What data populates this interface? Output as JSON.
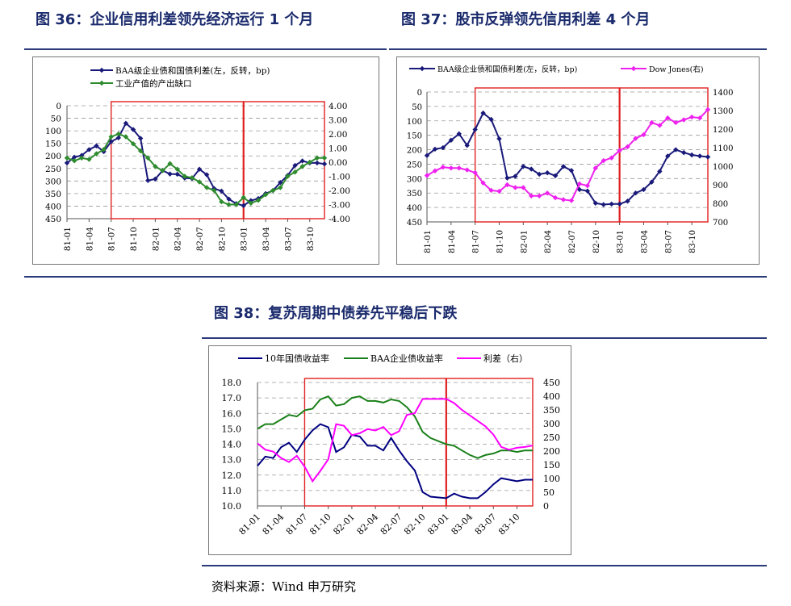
{
  "figure36": {
    "title": "图 36：企业信用利差领先经济运行 1 个月",
    "chart_data": {
      "type": "line",
      "categories": [
        "81-01",
        "81-02",
        "81-03",
        "81-04",
        "81-05",
        "81-06",
        "81-07",
        "81-08",
        "81-09",
        "81-10",
        "81-11",
        "81-12",
        "82-01",
        "82-02",
        "82-03",
        "82-04",
        "82-05",
        "82-06",
        "82-07",
        "82-08",
        "82-09",
        "82-10",
        "82-11",
        "82-12",
        "83-01",
        "83-02",
        "83-03",
        "83-04",
        "83-05",
        "83-06",
        "83-07",
        "83-08",
        "83-09",
        "83-10",
        "83-11",
        "83-12"
      ],
      "tick_labels": [
        "81-01",
        "81-04",
        "81-07",
        "81-10",
        "82-01",
        "82-04",
        "82-07",
        "82-10",
        "83-01",
        "83-04",
        "83-07",
        "83-10"
      ],
      "left_ticks": [
        "0",
        "50",
        "100",
        "150",
        "200",
        "250",
        "300",
        "350",
        "400",
        "450"
      ],
      "right_ticks": [
        "4.00",
        "3.00",
        "2.00",
        "1.00",
        "0.00",
        "-1.00",
        "-2.00",
        "-3.00",
        "-4.00"
      ],
      "left_range": [
        0,
        450
      ],
      "left_reversed": true,
      "right_range": [
        -4,
        4
      ],
      "highlight_ranges": [
        [
          "81-07",
          "83-01"
        ],
        [
          "83-01",
          "83-12"
        ]
      ],
      "series": [
        {
          "name": "BAA级企业债和国债利差(左，反转，bp)",
          "axis": "left",
          "color": "#1a1a7a",
          "values": [
            228,
            205,
            198,
            175,
            160,
            183,
            143,
            128,
            70,
            95,
            130,
            298,
            292,
            258,
            272,
            273,
            288,
            290,
            253,
            275,
            330,
            340,
            372,
            390,
            398,
            378,
            370,
            350,
            338,
            306,
            278,
            238,
            220,
            228,
            228,
            232
          ]
        },
        {
          "name": "工业产值的产出缺口",
          "axis": "right",
          "color": "#2e8b2e",
          "values": [
            0.3,
            0.1,
            0.3,
            0.2,
            0.6,
            0.9,
            1.8,
            2.0,
            1.8,
            1.3,
            0.8,
            0.3,
            -0.3,
            -0.6,
            -0.1,
            -0.5,
            -1.0,
            -1.1,
            -1.4,
            -1.8,
            -2.0,
            -2.8,
            -3.0,
            -3.0,
            -2.5,
            -2.9,
            -2.7,
            -2.3,
            -2.0,
            -1.8,
            -1.0,
            -0.7,
            -0.3,
            0.0,
            0.3,
            0.3
          ]
        }
      ]
    }
  },
  "figure37": {
    "title": "图 37：股市反弹领先信用利差 4 个月",
    "chart_data": {
      "type": "line",
      "categories": [
        "81-01",
        "81-02",
        "81-03",
        "81-04",
        "81-05",
        "81-06",
        "81-07",
        "81-08",
        "81-09",
        "81-10",
        "81-11",
        "81-12",
        "82-01",
        "82-02",
        "82-03",
        "82-04",
        "82-05",
        "82-06",
        "82-07",
        "82-08",
        "82-09",
        "82-10",
        "82-11",
        "82-12",
        "83-01",
        "83-02",
        "83-03",
        "83-04",
        "83-05",
        "83-06",
        "83-07",
        "83-08",
        "83-09",
        "83-10",
        "83-11",
        "83-12"
      ],
      "tick_labels": [
        "81-01",
        "81-04",
        "81-07",
        "81-10",
        "82-01",
        "82-04",
        "82-07",
        "82-10",
        "83-01",
        "83-04",
        "83-07",
        "83-10"
      ],
      "left_ticks": [
        "0",
        "50",
        "100",
        "150",
        "200",
        "250",
        "300",
        "350",
        "400",
        "450"
      ],
      "right_ticks": [
        "1400",
        "1300",
        "1200",
        "1100",
        "1000",
        "900",
        "800",
        "700"
      ],
      "left_range": [
        0,
        450
      ],
      "left_reversed": true,
      "right_range": [
        700,
        1400
      ],
      "highlight_ranges": [
        [
          "81-07",
          "83-01"
        ],
        [
          "83-01",
          "83-12"
        ]
      ],
      "series": [
        {
          "name": "BAA级企业债和国债利差(左，反转，bp)",
          "axis": "left",
          "color": "#1a1a7a",
          "values": [
            220,
            198,
            193,
            167,
            145,
            185,
            130,
            73,
            95,
            162,
            298,
            292,
            258,
            267,
            285,
            280,
            290,
            258,
            272,
            338,
            343,
            385,
            390,
            388,
            388,
            378,
            350,
            338,
            312,
            275,
            222,
            200,
            210,
            218,
            222,
            225
          ]
        },
        {
          "name": "Dow Jones(右)",
          "axis": "right",
          "color": "#ee22ee",
          "values": [
            950,
            975,
            995,
            990,
            990,
            980,
            965,
            910,
            870,
            865,
            900,
            885,
            885,
            840,
            840,
            855,
            830,
            820,
            815,
            905,
            895,
            990,
            1030,
            1045,
            1085,
            1105,
            1150,
            1170,
            1235,
            1220,
            1260,
            1235,
            1250,
            1265,
            1260,
            1305
          ]
        }
      ]
    }
  },
  "figure38": {
    "title": "图 38：复苏周期中债券先平稳后下跌",
    "chart_data": {
      "type": "line",
      "categories": [
        "81-01",
        "81-02",
        "81-03",
        "81-04",
        "81-05",
        "81-06",
        "81-07",
        "81-08",
        "81-09",
        "81-10",
        "81-11",
        "81-12",
        "82-01",
        "82-02",
        "82-03",
        "82-04",
        "82-05",
        "82-06",
        "82-07",
        "82-08",
        "82-09",
        "82-10",
        "82-11",
        "82-12",
        "83-01",
        "83-02",
        "83-03",
        "83-04",
        "83-05",
        "83-06",
        "83-07",
        "83-08",
        "83-09",
        "83-10",
        "83-11",
        "83-12"
      ],
      "tick_labels": [
        "81-01",
        "81-04",
        "81-07",
        "81-10",
        "82-01",
        "82-04",
        "82-07",
        "82-10",
        "83-01",
        "83-04",
        "83-07",
        "83-10"
      ],
      "left_ticks": [
        "18.0",
        "17.0",
        "16.0",
        "15.0",
        "14.0",
        "13.0",
        "12.0",
        "11.0",
        "10.0"
      ],
      "right_ticks": [
        "450",
        "400",
        "350",
        "300",
        "250",
        "200",
        "150",
        "100",
        "50",
        "0"
      ],
      "left_range": [
        10,
        18
      ],
      "right_range": [
        0,
        450
      ],
      "highlight_ranges": [
        [
          "81-07",
          "83-01"
        ],
        [
          "83-01",
          "83-12"
        ]
      ],
      "series": [
        {
          "name": "10年国债收益率",
          "axis": "left",
          "color": "#000080",
          "values": [
            12.6,
            13.2,
            13.1,
            13.8,
            14.1,
            13.5,
            14.3,
            14.9,
            15.3,
            15.1,
            13.5,
            13.8,
            14.6,
            14.5,
            13.9,
            13.9,
            13.6,
            14.4,
            13.6,
            12.9,
            12.3,
            10.9,
            10.6,
            10.55,
            10.5,
            10.8,
            10.6,
            10.5,
            10.5,
            10.9,
            11.4,
            11.8,
            11.7,
            11.6,
            11.7,
            11.7
          ]
        },
        {
          "name": "BAA企业债收益率",
          "axis": "left",
          "color": "#1a801a",
          "values": [
            15.0,
            15.3,
            15.3,
            15.6,
            15.9,
            15.8,
            16.2,
            16.3,
            16.9,
            17.1,
            16.5,
            16.6,
            17.0,
            17.1,
            16.8,
            16.8,
            16.7,
            16.9,
            16.8,
            16.4,
            15.8,
            14.8,
            14.4,
            14.2,
            14.0,
            13.9,
            13.6,
            13.3,
            13.1,
            13.3,
            13.4,
            13.6,
            13.6,
            13.5,
            13.6,
            13.6
          ]
        },
        {
          "name": "利差（右）",
          "axis": "right",
          "color": "#ff00ff",
          "values": [
            228,
            205,
            198,
            175,
            160,
            183,
            143,
            90,
            128,
            170,
            298,
            292,
            258,
            265,
            280,
            275,
            288,
            258,
            272,
            332,
            338,
            390,
            390,
            390,
            390,
            375,
            350,
            330,
            310,
            290,
            260,
            215,
            205,
            212,
            215,
            220
          ]
        }
      ]
    }
  },
  "source": "资料来源：Wind 申万研究"
}
